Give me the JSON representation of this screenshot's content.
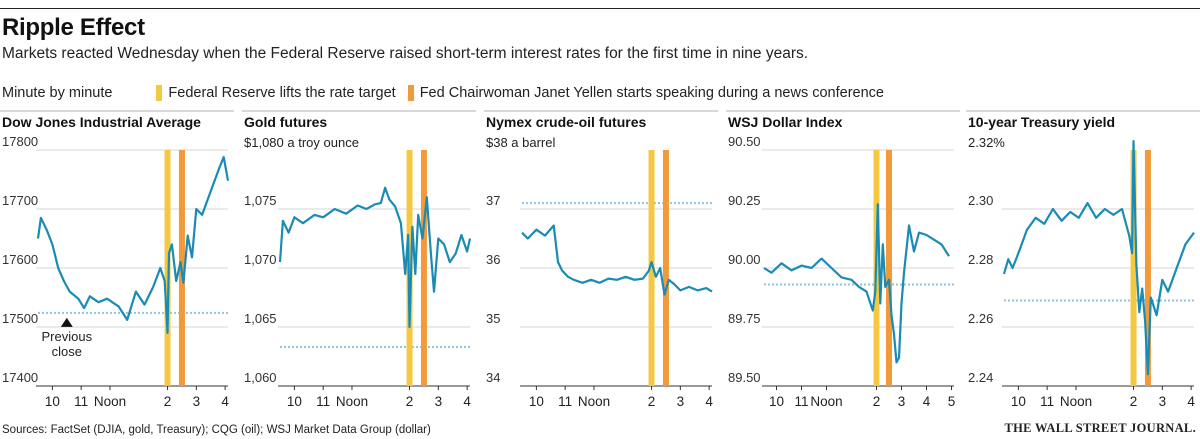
{
  "header": {
    "title": "Ripple Effect",
    "subtitle": "Markets reacted Wednesday when the Federal Reserve raised short-term interest rates for the first time in nine years."
  },
  "legend": {
    "label": "Minute by minute",
    "items": [
      {
        "label": "Federal Reserve lifts the rate target",
        "color": "#f5c842"
      },
      {
        "label": "Fed Chairwoman Janet Yellen starts speaking during a news conference",
        "color": "#f29a3a"
      }
    ]
  },
  "colors": {
    "line": "#1a8bb4",
    "previous_close": "#8cc6e2",
    "fed_marker": "#f5c842",
    "yellen_marker": "#f29a3a",
    "gridline": "#c8c8c8"
  },
  "footer": {
    "source": "Sources: FactSet (DJIA, gold, Treasury); CQG (oil); WSJ Market Data Group (dollar)",
    "brand": "THE WALL STREET JOURNAL."
  },
  "chart_data": [
    {
      "type": "line",
      "title": "Dow Jones Industrial Average",
      "unit_label": "",
      "ylim": [
        17400,
        17800
      ],
      "yticks": [
        17400,
        17500,
        17600,
        17700,
        17800
      ],
      "ytick_labels": [
        "17400",
        "17500",
        "17600",
        "17700",
        "17800"
      ],
      "xlim": [
        9.5,
        16.1
      ],
      "xticks": [
        10,
        11,
        12,
        14,
        15,
        16
      ],
      "xtick_labels": [
        "10",
        "11",
        "Noon",
        "2",
        "3",
        "4"
      ],
      "fed_time": 14.0,
      "yellen_time": 14.5,
      "previous_close": 17524,
      "annotation": {
        "text": [
          "Previous",
          "close"
        ],
        "x": 10.5
      },
      "series": [
        {
          "name": "DJIA",
          "x": [
            9.5,
            9.6,
            9.8,
            10.0,
            10.2,
            10.4,
            10.6,
            10.9,
            11.1,
            11.3,
            11.6,
            11.9,
            12.3,
            12.6,
            12.9,
            13.2,
            13.5,
            13.75,
            13.9,
            14.0,
            14.05,
            14.15,
            14.3,
            14.45,
            14.55,
            14.7,
            14.85,
            15.0,
            15.2,
            15.5,
            15.8,
            15.95,
            16.1
          ],
          "y": [
            17650,
            17685,
            17665,
            17640,
            17600,
            17578,
            17560,
            17548,
            17532,
            17552,
            17542,
            17548,
            17535,
            17512,
            17560,
            17538,
            17568,
            17600,
            17578,
            17490,
            17625,
            17640,
            17578,
            17610,
            17575,
            17655,
            17618,
            17700,
            17690,
            17730,
            17770,
            17788,
            17748
          ]
        }
      ]
    },
    {
      "type": "line",
      "title": "Gold futures",
      "unit_label": "$1,080 a troy ounce",
      "ylim": [
        1060,
        1080
      ],
      "yticks": [
        1060,
        1065,
        1070,
        1075
      ],
      "ytick_labels": [
        "1,060",
        "1,065",
        "1,070",
        "1,075"
      ],
      "xlim": [
        9.5,
        16.1
      ],
      "xticks": [
        10,
        11,
        12,
        14,
        15,
        16
      ],
      "xtick_labels": [
        "10",
        "11",
        "Noon",
        "2",
        "3",
        "4"
      ],
      "fed_time": 14.0,
      "yellen_time": 14.5,
      "previous_close": 1063.3,
      "series": [
        {
          "name": "Gold",
          "x": [
            9.5,
            9.6,
            9.8,
            10.0,
            10.3,
            10.7,
            11.0,
            11.4,
            11.8,
            12.2,
            12.5,
            12.8,
            13.0,
            13.15,
            13.3,
            13.5,
            13.7,
            13.85,
            13.95,
            14.0,
            14.1,
            14.2,
            14.3,
            14.45,
            14.6,
            14.75,
            14.85,
            15.0,
            15.2,
            15.4,
            15.6,
            15.8,
            16.0,
            16.1
          ],
          "y": [
            1070.5,
            1074.0,
            1073.0,
            1074.3,
            1073.8,
            1074.5,
            1074.3,
            1075.0,
            1074.6,
            1075.3,
            1075.0,
            1075.4,
            1075.5,
            1076.8,
            1075.8,
            1075.2,
            1073.8,
            1069.5,
            1072.8,
            1065.0,
            1073.5,
            1069.5,
            1074.5,
            1072.5,
            1076.0,
            1071.0,
            1068.0,
            1072.5,
            1072.0,
            1070.5,
            1071.2,
            1072.8,
            1071.4,
            1072.5
          ]
        }
      ]
    },
    {
      "type": "line",
      "title": "Nymex crude-oil futures",
      "unit_label": "$38 a barrel",
      "ylim": [
        34,
        38
      ],
      "yticks": [
        34,
        35,
        36,
        37
      ],
      "ytick_labels": [
        "34",
        "35",
        "36",
        "37"
      ],
      "xlim": [
        9.5,
        16.1
      ],
      "xticks": [
        10,
        11,
        12,
        14,
        15,
        16
      ],
      "xtick_labels": [
        "10",
        "11",
        "Noon",
        "2",
        "3",
        "4"
      ],
      "fed_time": 14.0,
      "yellen_time": 14.5,
      "previous_close": 37.1,
      "series": [
        {
          "name": "Crude oil",
          "x": [
            9.5,
            9.7,
            10.0,
            10.3,
            10.6,
            10.75,
            10.9,
            11.1,
            11.3,
            11.6,
            11.9,
            12.2,
            12.5,
            12.8,
            13.1,
            13.4,
            13.7,
            13.9,
            14.0,
            14.15,
            14.3,
            14.45,
            14.6,
            14.8,
            15.0,
            15.3,
            15.6,
            15.9,
            16.1
          ],
          "y": [
            36.6,
            36.5,
            36.65,
            36.55,
            36.72,
            36.1,
            35.95,
            35.85,
            35.8,
            35.75,
            35.8,
            35.75,
            35.82,
            35.8,
            35.85,
            35.8,
            35.82,
            35.95,
            36.1,
            35.85,
            36.0,
            35.55,
            35.8,
            35.72,
            35.62,
            35.68,
            35.62,
            35.66,
            35.6
          ]
        }
      ]
    },
    {
      "type": "line",
      "title": "WSJ Dollar Index",
      "unit_label": "",
      "ylim": [
        89.5,
        90.5
      ],
      "yticks": [
        89.5,
        89.75,
        90.0,
        90.25,
        90.5
      ],
      "ytick_labels": [
        "89.50",
        "89.75",
        "90.00",
        "90.25",
        "90.50"
      ],
      "xlim": [
        9.5,
        17.1
      ],
      "xticks": [
        10,
        11,
        12,
        14,
        15,
        16,
        17
      ],
      "xtick_labels": [
        "10",
        "11",
        "Noon",
        "2",
        "3",
        "4",
        "5"
      ],
      "fed_time": 14.0,
      "yellen_time": 14.5,
      "previous_close": 89.93,
      "series": [
        {
          "name": "Dollar index",
          "x": [
            9.5,
            9.8,
            10.2,
            10.6,
            11.0,
            11.4,
            11.8,
            12.2,
            12.6,
            13.0,
            13.3,
            13.6,
            13.85,
            13.95,
            14.05,
            14.15,
            14.25,
            14.35,
            14.5,
            14.6,
            14.7,
            14.8,
            14.9,
            15.0,
            15.1,
            15.3,
            15.5,
            15.7,
            16.0,
            16.3,
            16.6,
            16.9
          ],
          "y": [
            90.0,
            89.98,
            90.02,
            89.99,
            90.01,
            90.0,
            90.04,
            90.0,
            89.96,
            89.95,
            89.92,
            89.9,
            89.82,
            89.9,
            90.27,
            89.85,
            90.1,
            89.92,
            89.95,
            89.8,
            89.72,
            89.6,
            89.62,
            89.85,
            89.98,
            90.18,
            90.07,
            90.15,
            90.14,
            90.12,
            90.1,
            90.05
          ]
        }
      ]
    },
    {
      "type": "line",
      "title": "10-year Treasury yield",
      "unit_label": "2.32%",
      "ylim": [
        2.24,
        2.32
      ],
      "yticks": [
        2.24,
        2.26,
        2.28,
        2.3
      ],
      "ytick_labels": [
        "2.24",
        "2.26",
        "2.28",
        "2.30"
      ],
      "xlim": [
        9.5,
        16.1
      ],
      "xticks": [
        10,
        11,
        12,
        14,
        15,
        16
      ],
      "xtick_labels": [
        "10",
        "11",
        "Noon",
        "2",
        "3",
        "4"
      ],
      "fed_time": 14.0,
      "yellen_time": 14.5,
      "previous_close": 2.269,
      "series": [
        {
          "name": "Treasury yield",
          "x": [
            9.5,
            9.65,
            9.8,
            10.0,
            10.3,
            10.6,
            10.9,
            11.2,
            11.5,
            11.8,
            12.1,
            12.4,
            12.7,
            13.0,
            13.3,
            13.6,
            13.85,
            13.95,
            14.0,
            14.1,
            14.2,
            14.3,
            14.4,
            14.5,
            14.6,
            14.8,
            15.0,
            15.2,
            15.5,
            15.8,
            16.1
          ],
          "y": [
            2.278,
            2.283,
            2.28,
            2.285,
            2.293,
            2.297,
            2.295,
            2.3,
            2.296,
            2.299,
            2.297,
            2.302,
            2.297,
            2.3,
            2.298,
            2.3,
            2.291,
            2.285,
            2.323,
            2.281,
            2.265,
            2.273,
            2.262,
            2.244,
            2.27,
            2.264,
            2.276,
            2.272,
            2.28,
            2.288,
            2.292
          ]
        }
      ]
    }
  ]
}
